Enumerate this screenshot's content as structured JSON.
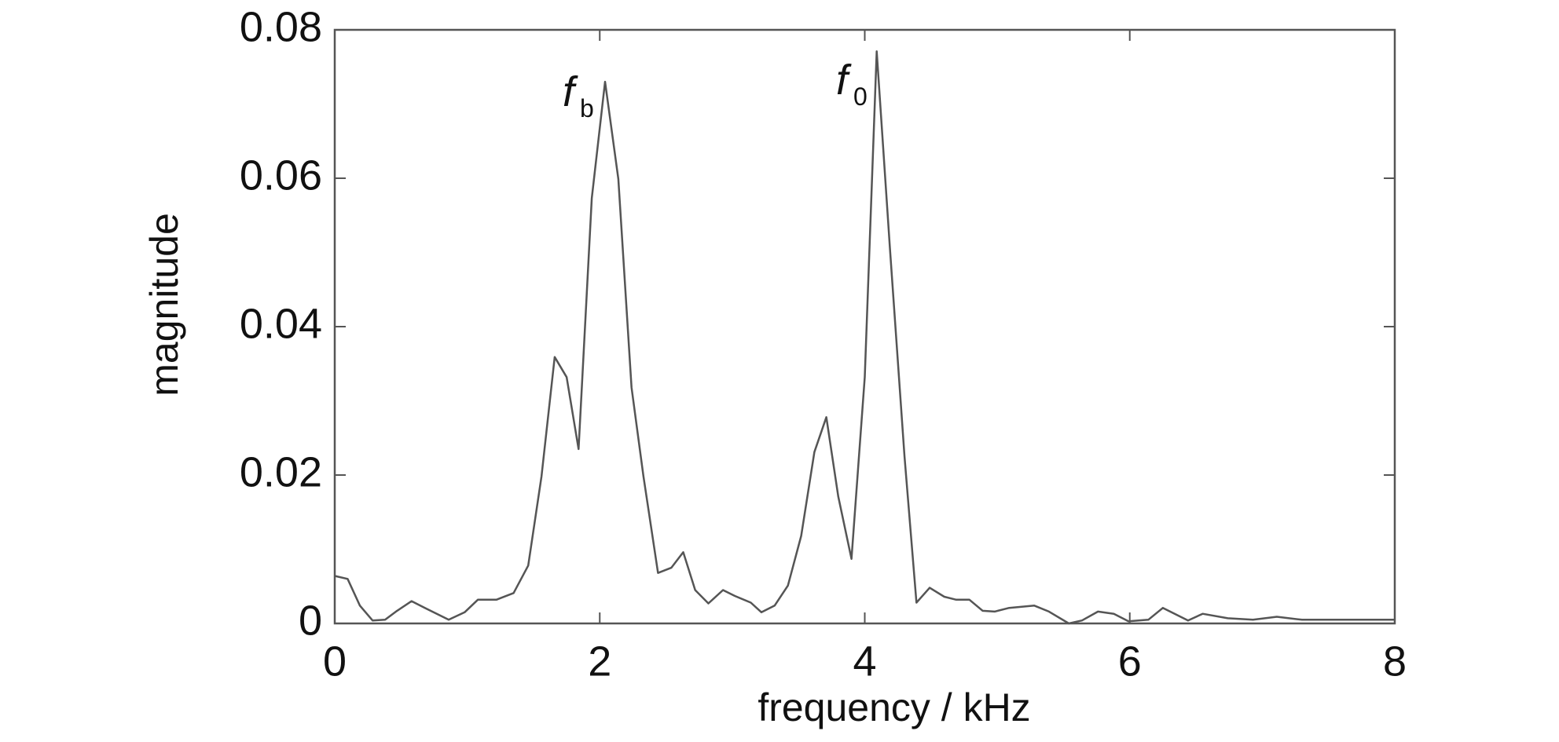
{
  "chart_data": {
    "type": "line",
    "xlabel": "frequency / kHz",
    "ylabel": "magnitude",
    "x": [
      0,
      0.0975,
      0.19,
      0.285,
      0.38,
      0.47,
      0.58,
      0.68,
      0.86,
      0.98,
      1.08,
      1.22,
      1.35,
      1.46,
      1.56,
      1.66,
      1.75,
      1.84,
      1.94,
      2.04,
      2.14,
      2.24,
      2.33,
      2.44,
      2.54,
      2.63,
      2.72,
      2.82,
      2.93,
      3.02,
      3.14,
      3.22,
      3.32,
      3.42,
      3.52,
      3.62,
      3.71,
      3.8,
      3.9,
      4.0,
      4.09,
      4.19,
      4.3,
      4.39,
      4.49,
      4.6,
      4.69,
      4.79,
      4.89,
      4.98,
      5.09,
      5.28,
      5.39,
      5.54,
      5.64,
      5.76,
      5.88,
      5.99,
      6.14,
      6.25,
      6.44,
      6.55,
      6.74,
      6.93,
      7.11,
      7.3,
      8.0
    ],
    "series": [
      {
        "color": "#555555",
        "values": [
          0.0064,
          0.006,
          0.0024,
          0.0004,
          0.0005,
          0.0017,
          0.003,
          0.0021,
          0.0005,
          0.0015,
          0.0032,
          0.0032,
          0.0041,
          0.0078,
          0.0198,
          0.0359,
          0.0332,
          0.0235,
          0.0573,
          0.073,
          0.0599,
          0.0318,
          0.0198,
          0.0068,
          0.0075,
          0.0096,
          0.0045,
          0.0027,
          0.0045,
          0.0037,
          0.0028,
          0.0015,
          0.0024,
          0.0051,
          0.0118,
          0.0231,
          0.0278,
          0.0171,
          0.0087,
          0.0332,
          0.0771,
          0.0506,
          0.0225,
          0.0028,
          0.0048,
          0.0036,
          0.0032,
          0.0032,
          0.0017,
          0.0016,
          0.0021,
          0.0024,
          0.0016,
          0.0,
          0.0004,
          0.0016,
          0.0013,
          0.0003,
          0.0005,
          0.0021,
          0.0004,
          0.0013,
          0.0007,
          0.0005,
          0.0009,
          0.0005,
          0.0005
        ]
      }
    ],
    "xlim": [
      0,
      8
    ],
    "xticks": [
      0,
      2,
      4,
      6,
      8
    ],
    "ylim": [
      0,
      0.08
    ],
    "yticks": [
      0,
      0.02,
      0.04,
      0.06,
      0.08
    ],
    "annotations": [
      {
        "text": "f",
        "subscript": "b"
      },
      {
        "text": "f",
        "subscript": "0"
      }
    ]
  }
}
